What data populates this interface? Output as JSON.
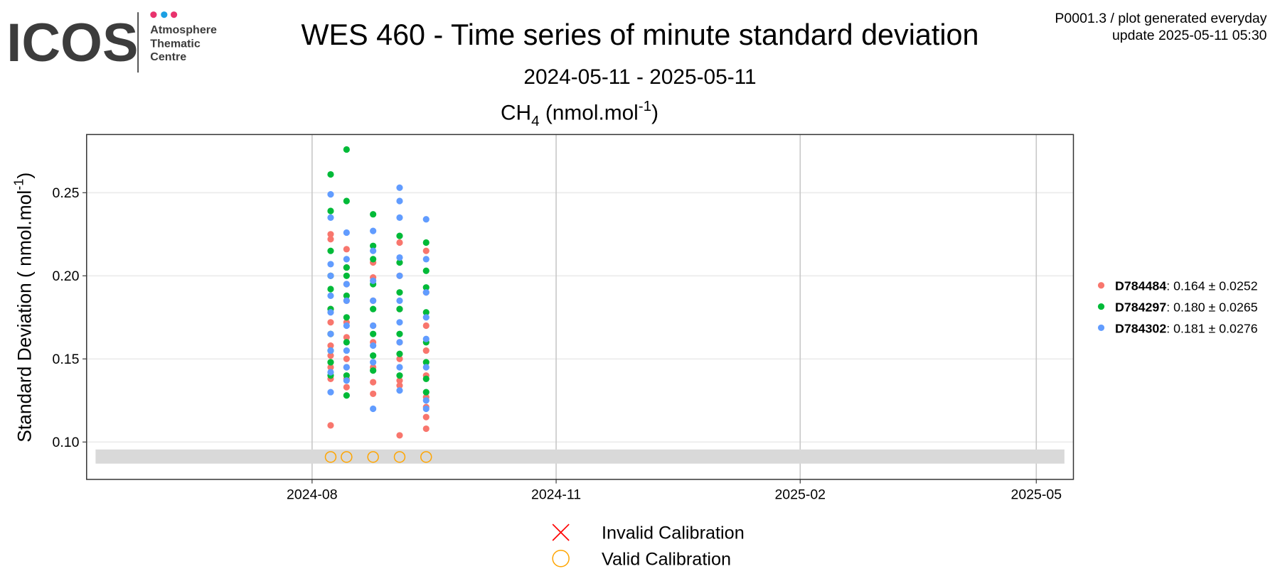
{
  "chart_data": {
    "type": "scatter",
    "logo": {
      "text": "ICOS",
      "lines": [
        "Atmosphere",
        "Thematic",
        "Centre"
      ]
    },
    "title": "WES 460 - Time series of minute standard deviation",
    "subtitle": "2024-05-11 - 2025-05-11",
    "panel_title": {
      "main": "CH",
      "sub": "4",
      "unit": " (nmol.mol",
      "sup": "-1",
      "close": ")"
    },
    "note": [
      "P0001.3 / plot generated everyday",
      "update  2025-05-11 05:30"
    ],
    "y_label": {
      "main": "Standard Deviation ( nmol.mol",
      "sup": "-1",
      "close": ")"
    },
    "xlim": [
      "2024-05-08",
      "2025-05-15"
    ],
    "xticks": [
      {
        "value": "2024-08-01",
        "label": "2024-08"
      },
      {
        "value": "2024-11-01",
        "label": "2024-11"
      },
      {
        "value": "2025-02-01",
        "label": "2025-02"
      },
      {
        "value": "2025-05-01",
        "label": "2025-05"
      }
    ],
    "ylim": [
      0.0775,
      0.285
    ],
    "yticks": [
      {
        "value": 0.1,
        "label": "0.10"
      },
      0.15,
      {
        "value": 0.2,
        "label": "0.20"
      },
      0.25
    ],
    "grid": true,
    "band_y": [
      0.087,
      0.0955
    ],
    "legend_position": "right",
    "series": [
      {
        "name": "D784484",
        "stat_label": ": 0.164 ± 0.0252",
        "color": "#F8766D",
        "x": [
          "2024-08-08",
          "2024-08-08",
          "2024-08-08",
          "2024-08-08",
          "2024-08-08",
          "2024-08-08",
          "2024-08-08",
          "2024-08-08",
          "2024-08-08",
          "2024-08-08",
          "2024-08-08",
          "2024-08-14",
          "2024-08-14",
          "2024-08-14",
          "2024-08-14",
          "2024-08-14",
          "2024-08-14",
          "2024-08-14",
          "2024-08-14",
          "2024-08-14",
          "2024-08-14",
          "2024-08-24",
          "2024-08-24",
          "2024-08-24",
          "2024-08-24",
          "2024-08-24",
          "2024-08-24",
          "2024-08-24",
          "2024-08-24",
          "2024-09-03",
          "2024-09-03",
          "2024-09-03",
          "2024-09-03",
          "2024-09-03",
          "2024-09-03",
          "2024-09-03",
          "2024-09-03",
          "2024-09-13",
          "2024-09-13",
          "2024-09-13",
          "2024-09-13",
          "2024-09-13",
          "2024-09-13",
          "2024-09-13",
          "2024-09-13",
          "2024-09-13"
        ],
        "values": [
          0.11,
          0.138,
          0.145,
          0.152,
          0.158,
          0.165,
          0.172,
          0.18,
          0.2,
          0.222,
          0.225,
          0.133,
          0.138,
          0.145,
          0.15,
          0.163,
          0.172,
          0.185,
          0.195,
          0.205,
          0.216,
          0.129,
          0.136,
          0.145,
          0.16,
          0.17,
          0.185,
          0.199,
          0.208,
          0.104,
          0.134,
          0.137,
          0.15,
          0.16,
          0.18,
          0.2,
          0.22,
          0.108,
          0.115,
          0.121,
          0.127,
          0.14,
          0.155,
          0.17,
          0.19,
          0.215
        ]
      },
      {
        "name": "D784297",
        "stat_label": ": 0.180 ± 0.0265",
        "color": "#00BA38",
        "x": [
          "2024-08-08",
          "2024-08-08",
          "2024-08-08",
          "2024-08-08",
          "2024-08-08",
          "2024-08-08",
          "2024-08-08",
          "2024-08-08",
          "2024-08-08",
          "2024-08-08",
          "2024-08-14",
          "2024-08-14",
          "2024-08-14",
          "2024-08-14",
          "2024-08-14",
          "2024-08-14",
          "2024-08-14",
          "2024-08-14",
          "2024-08-14",
          "2024-08-24",
          "2024-08-24",
          "2024-08-24",
          "2024-08-24",
          "2024-08-24",
          "2024-08-24",
          "2024-08-24",
          "2024-08-24",
          "2024-09-03",
          "2024-09-03",
          "2024-09-03",
          "2024-09-03",
          "2024-09-03",
          "2024-09-03",
          "2024-09-03",
          "2024-09-13",
          "2024-09-13",
          "2024-09-13",
          "2024-09-13",
          "2024-09-13",
          "2024-09-13",
          "2024-09-13",
          "2024-09-13"
        ],
        "values": [
          0.14,
          0.148,
          0.155,
          0.165,
          0.18,
          0.192,
          0.2,
          0.215,
          0.239,
          0.261,
          0.128,
          0.14,
          0.16,
          0.175,
          0.188,
          0.2,
          0.205,
          0.245,
          0.276,
          0.143,
          0.152,
          0.165,
          0.18,
          0.195,
          0.21,
          0.218,
          0.237,
          0.14,
          0.153,
          0.165,
          0.18,
          0.19,
          0.208,
          0.224,
          0.13,
          0.138,
          0.148,
          0.16,
          0.178,
          0.193,
          0.203,
          0.22
        ]
      },
      {
        "name": "D784302",
        "stat_label": ": 0.181 ± 0.0276",
        "color": "#619CFF",
        "x": [
          "2024-08-08",
          "2024-08-08",
          "2024-08-08",
          "2024-08-08",
          "2024-08-08",
          "2024-08-08",
          "2024-08-08",
          "2024-08-08",
          "2024-08-08",
          "2024-08-08",
          "2024-08-14",
          "2024-08-14",
          "2024-08-14",
          "2024-08-14",
          "2024-08-14",
          "2024-08-14",
          "2024-08-14",
          "2024-08-14",
          "2024-08-24",
          "2024-08-24",
          "2024-08-24",
          "2024-08-24",
          "2024-08-24",
          "2024-08-24",
          "2024-08-24",
          "2024-08-24",
          "2024-09-03",
          "2024-09-03",
          "2024-09-03",
          "2024-09-03",
          "2024-09-03",
          "2024-09-03",
          "2024-09-03",
          "2024-09-03",
          "2024-09-03",
          "2024-09-03",
          "2024-09-13",
          "2024-09-13",
          "2024-09-13",
          "2024-09-13",
          "2024-09-13",
          "2024-09-13",
          "2024-09-13",
          "2024-09-13"
        ],
        "values": [
          0.13,
          0.142,
          0.155,
          0.165,
          0.178,
          0.188,
          0.2,
          0.207,
          0.235,
          0.249,
          0.137,
          0.145,
          0.155,
          0.17,
          0.185,
          0.195,
          0.21,
          0.226,
          0.12,
          0.148,
          0.158,
          0.17,
          0.185,
          0.197,
          0.215,
          0.227,
          0.131,
          0.145,
          0.16,
          0.172,
          0.185,
          0.2,
          0.211,
          0.235,
          0.245,
          0.253,
          0.12,
          0.125,
          0.145,
          0.162,
          0.175,
          0.19,
          0.21,
          0.234
        ]
      }
    ],
    "calibrations": [
      {
        "name": "Invalid Calibration",
        "color": "#FF0000",
        "x": [],
        "values": []
      },
      {
        "name": "Valid Calibration",
        "color": "#FFA500",
        "x": [
          "2024-08-08",
          "2024-08-14",
          "2024-08-24",
          "2024-09-03",
          "2024-09-13"
        ],
        "values": [
          0.091,
          0.091,
          0.091,
          0.091,
          0.091
        ]
      }
    ]
  }
}
